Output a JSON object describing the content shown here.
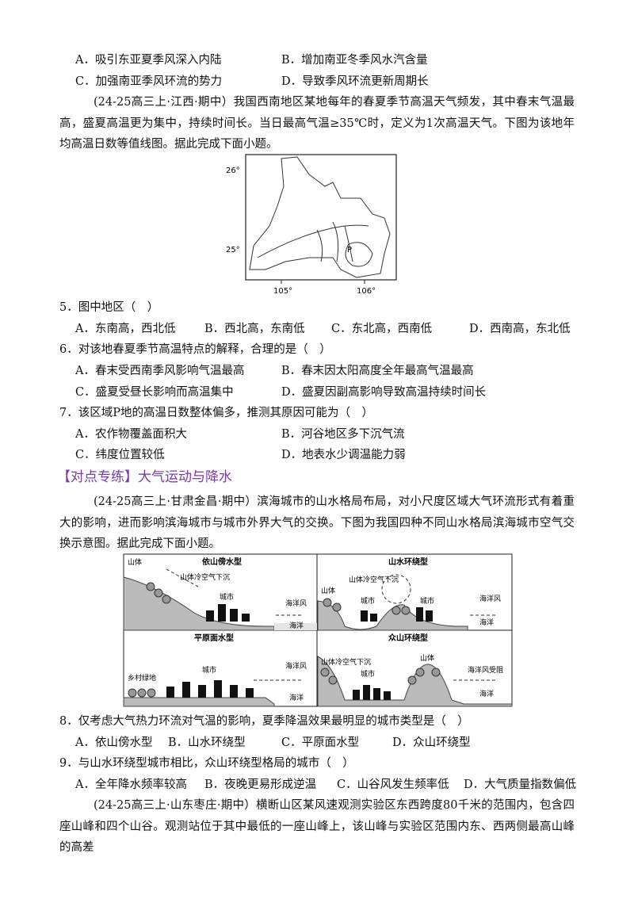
{
  "top_options": {
    "A": "A．吸引东亚夏季风深入内陆",
    "B": "B．增加南亚冬季风水汽含量",
    "C": "C．加强南亚季风环流的势力",
    "D": "D．导致季风环流更新周期长"
  },
  "passage1": "(24-25高三上·江西·期中）我国西南地区某地每年的春夏季节高温天气频发，其中春末气温最高，盛夏高温更为集中，持续时间长。当日最高气温≥35℃时，定义为1次高温天气。下图为该地年均高温日数等值线图。据此完成下面小题。",
  "map": {
    "lat_top": "26°",
    "lat_bottom": "25°",
    "lon_left": "105°",
    "lon_right": "106°",
    "point": "P"
  },
  "questions": [
    {
      "stem": "5．图中地区（　）",
      "options": [
        "A．东南高，西北低",
        "B．西北高，东南低",
        "C．东北高，西南低",
        "D．西南高，东北低"
      ]
    },
    {
      "stem": "6．对该地春夏季节高温特点的解释，合理的是（　）",
      "options": [
        "A．春末受西南季风影响气温最高",
        "B．春末因太阳高度全年最高气温最高",
        "C．盛夏受昼长影响而高温集中",
        "D．盛夏因副高影响导致高温持续时间长"
      ]
    },
    {
      "stem": "7．该区域P地的高温日数整体偏多，推测其原因可能为（　）",
      "options": [
        "A．农作物覆盖面积大",
        "B．河谷地区多下沉气流",
        "C．纬度位置较低",
        "D．地表水少调温能力弱"
      ]
    },
    {
      "stem": "8．仅考虑大气热力环流对气温的影响，夏季降温效果最明显的城市类型是（　）",
      "options": [
        "A．依山傍水型",
        "B．山水环绕型",
        "C．平原面水型",
        "D．众山环绕型"
      ]
    },
    {
      "stem": "9．与山水环绕型城市相比，众山环绕型格局的城市（　）",
      "options": [
        "A．全年降水频率较高",
        "B．夜晚更易形成逆温",
        "C．山谷风发生频率低",
        "D．大气质量指数偏低"
      ]
    }
  ],
  "section_heading": "【对点专练】大气运动与降水",
  "passage2": "(24-25高三上·甘肃金昌·期中）滨海城市的山水格局布局，对小尺度区域大气环流形式有着重大的影响，进而影响滨海城市与城市外界大气的交换。下图为我国四种不同山水格局滨海城市空气交换示意图。据此完成下面小题。",
  "diagram": {
    "p1": {
      "title": "依山傍水型",
      "mountain": "山体",
      "sink": "山体冷空气下沉",
      "city": "城市",
      "wind": "海洋风",
      "sea": "海洋"
    },
    "p2": {
      "title": "山水环绕型",
      "mountain": "山体",
      "sink": "山体冷空气下沉",
      "city1": "城市",
      "city2": "城市",
      "wind": "海洋风",
      "sea": "海洋"
    },
    "p3": {
      "title": "平原面水型",
      "green": "乡村绿地",
      "city": "城市",
      "wind": "海洋风",
      "sea": "海洋"
    },
    "p4": {
      "title": "众山环绕型",
      "sink": "山体冷空气下沉",
      "city": "城市",
      "mountain": "山体",
      "wind": "海洋风受阻",
      "sea": "海洋"
    }
  },
  "passage3": "(24-25高三上·山东枣庄·期中）横断山区某风速观测实验区东西跨度80千米的范围内，包含四座山峰和四个山谷。观测站位于其中最低的一座山峰上，该山峰与实验区范围内东、西两侧最高山峰的高差"
}
